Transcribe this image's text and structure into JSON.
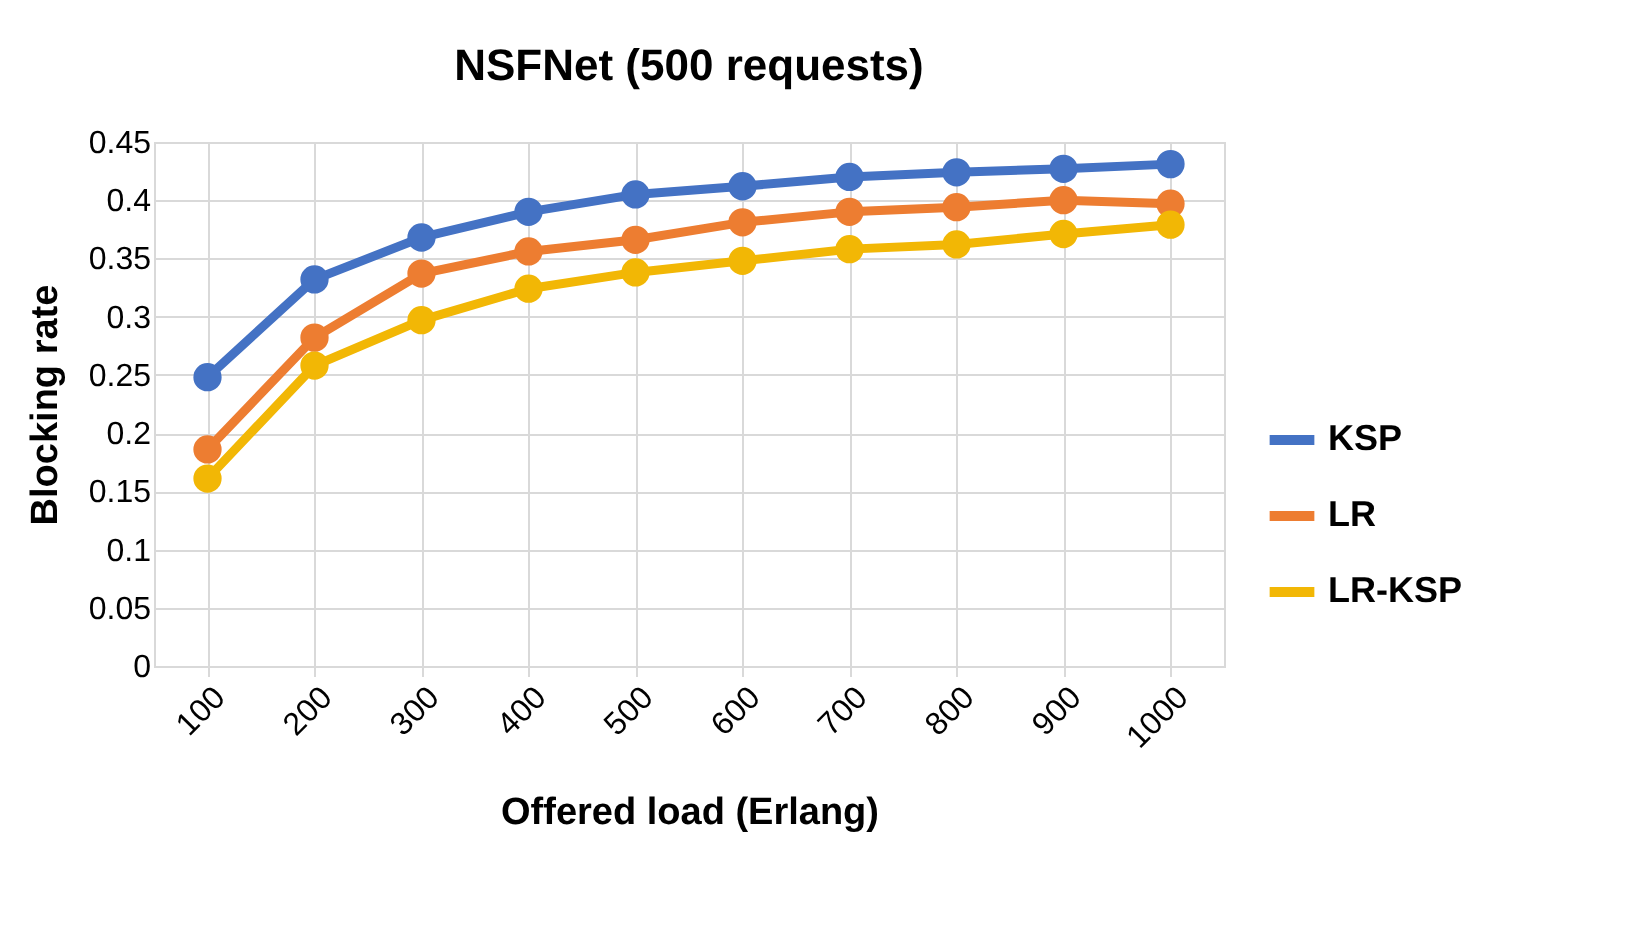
{
  "chart_data": {
    "type": "line",
    "title": "NSFNet (500 requests)",
    "xlabel": "Offered load (Erlang)",
    "ylabel": "Blocking rate",
    "categories": [
      "100",
      "200",
      "300",
      "400",
      "500",
      "600",
      "700",
      "800",
      "900",
      "1000"
    ],
    "series": [
      {
        "name": "KSP",
        "color": "#4472c4",
        "values": [
          0.248,
          0.332,
          0.368,
          0.39,
          0.405,
          0.412,
          0.42,
          0.424,
          0.427,
          0.431
        ]
      },
      {
        "name": "LR",
        "color": "#ed7d31",
        "values": [
          0.186,
          0.282,
          0.337,
          0.356,
          0.366,
          0.381,
          0.39,
          0.394,
          0.4,
          0.397
        ]
      },
      {
        "name": "LR-KSP",
        "color": "#f2b705",
        "values": [
          0.161,
          0.258,
          0.297,
          0.324,
          0.338,
          0.348,
          0.358,
          0.362,
          0.371,
          0.379
        ]
      }
    ],
    "ylim": [
      0,
      0.45
    ],
    "yticks": [
      0,
      0.05,
      0.1,
      0.15,
      0.2,
      0.25,
      0.3,
      0.35,
      0.4,
      0.45
    ],
    "grid": true,
    "legend": "right",
    "marker": "circle",
    "line_style": "solid"
  }
}
